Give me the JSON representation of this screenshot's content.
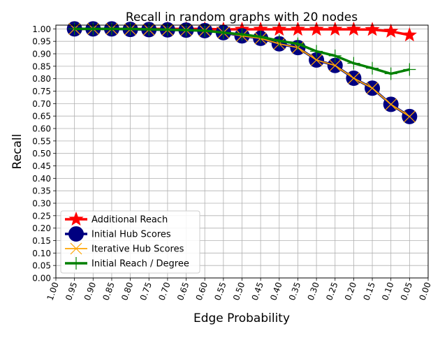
{
  "chart_data": {
    "type": "line",
    "title": "Recall in random graphs with 20 nodes",
    "xlabel": "Edge Probability",
    "ylabel": "Recall",
    "x_inverted": true,
    "xlim": [
      1.0,
      0.0
    ],
    "ylim": [
      0.0,
      1.015
    ],
    "grid": true,
    "legend_position": "lower-left",
    "x_ticks": [
      "1.00",
      "0.95",
      "0.90",
      "0.85",
      "0.80",
      "0.75",
      "0.70",
      "0.65",
      "0.60",
      "0.55",
      "0.50",
      "0.45",
      "0.40",
      "0.35",
      "0.30",
      "0.25",
      "0.20",
      "0.15",
      "0.10",
      "0.05",
      "0.00"
    ],
    "x_tick_values": [
      1.0,
      0.95,
      0.9,
      0.85,
      0.8,
      0.75,
      0.7,
      0.65,
      0.6,
      0.55,
      0.5,
      0.45,
      0.4,
      0.35,
      0.3,
      0.25,
      0.2,
      0.15,
      0.1,
      0.05,
      0.0
    ],
    "y_ticks": [
      "0.00",
      "0.05",
      "0.10",
      "0.15",
      "0.20",
      "0.25",
      "0.30",
      "0.35",
      "0.40",
      "0.45",
      "0.50",
      "0.55",
      "0.60",
      "0.65",
      "0.70",
      "0.75",
      "0.80",
      "0.85",
      "0.90",
      "0.95",
      "1.00"
    ],
    "y_tick_values": [
      0.0,
      0.05,
      0.1,
      0.15,
      0.2,
      0.25,
      0.3,
      0.35,
      0.4,
      0.45,
      0.5,
      0.55,
      0.6,
      0.65,
      0.7,
      0.75,
      0.8,
      0.85,
      0.9,
      0.95,
      1.0
    ],
    "x": [
      0.95,
      0.9,
      0.85,
      0.8,
      0.75,
      0.7,
      0.65,
      0.6,
      0.55,
      0.5,
      0.45,
      0.4,
      0.35,
      0.3,
      0.25,
      0.2,
      0.15,
      0.1,
      0.05
    ],
    "series": [
      {
        "name": "Additional Reach",
        "color": "#ff0000",
        "marker": "star",
        "values": [
          1.0,
          1.0,
          1.0,
          1.0,
          1.0,
          1.0,
          1.0,
          1.0,
          0.998,
          0.998,
          0.998,
          0.998,
          0.998,
          0.998,
          0.998,
          0.998,
          0.997,
          0.99,
          0.975
        ]
      },
      {
        "name": "Initial Hub Scores",
        "color": "#000080",
        "marker": "circle",
        "values": [
          1.0,
          1.0,
          1.0,
          0.998,
          0.997,
          0.996,
          0.995,
          0.993,
          0.985,
          0.972,
          0.962,
          0.94,
          0.925,
          0.875,
          0.853,
          0.802,
          0.762,
          0.697,
          0.648
        ]
      },
      {
        "name": "Iterative Hub Scores",
        "color": "#ffa500",
        "marker": "x",
        "values": [
          1.0,
          1.0,
          1.0,
          0.998,
          0.997,
          0.996,
          0.995,
          0.993,
          0.985,
          0.972,
          0.962,
          0.94,
          0.925,
          0.875,
          0.853,
          0.802,
          0.762,
          0.697,
          0.648
        ]
      },
      {
        "name": "Initial Reach / Degree",
        "color": "#008000",
        "marker": "plus",
        "values": [
          1.0,
          1.0,
          1.0,
          1.0,
          0.998,
          0.997,
          0.995,
          0.993,
          0.985,
          0.978,
          0.968,
          0.952,
          0.94,
          0.91,
          0.892,
          0.862,
          0.842,
          0.82,
          0.837
        ]
      }
    ]
  }
}
